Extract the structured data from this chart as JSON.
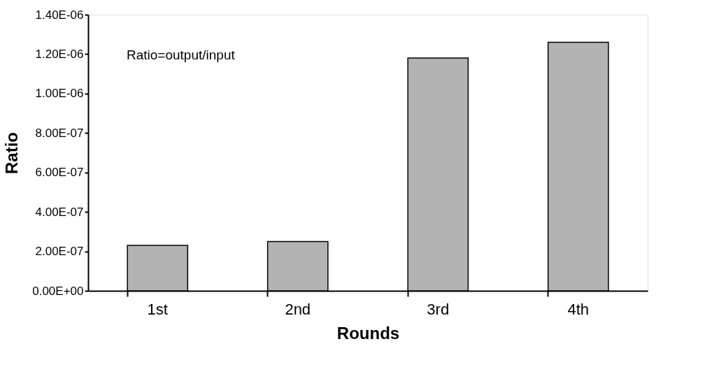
{
  "chart_data": {
    "type": "bar",
    "xlabel": "Rounds",
    "ylabel": "Ratio",
    "annotations": [
      "Ratio=output/input"
    ],
    "categories": [
      "1st",
      "2nd",
      "3rd",
      "4th"
    ],
    "values": [
      2.3e-07,
      2.5e-07,
      1.18e-06,
      1.26e-06
    ],
    "color": "#b3b3b3",
    "ylim": [
      0,
      1.4e-06
    ],
    "yticks": [
      {
        "value": 0,
        "label": "0.00E+00"
      },
      {
        "value": 2e-07,
        "label": "2.00E-07"
      },
      {
        "value": 4e-07,
        "label": "4.00E-07"
      },
      {
        "value": 6e-07,
        "label": "6.00E-07"
      },
      {
        "value": 8e-07,
        "label": "8.00E-07"
      },
      {
        "value": 1e-06,
        "label": "1.00E-06"
      },
      {
        "value": 1.2e-06,
        "label": "1.20E-06"
      },
      {
        "value": 1.4e-06,
        "label": "1.40E-06"
      }
    ],
    "grid": false
  }
}
